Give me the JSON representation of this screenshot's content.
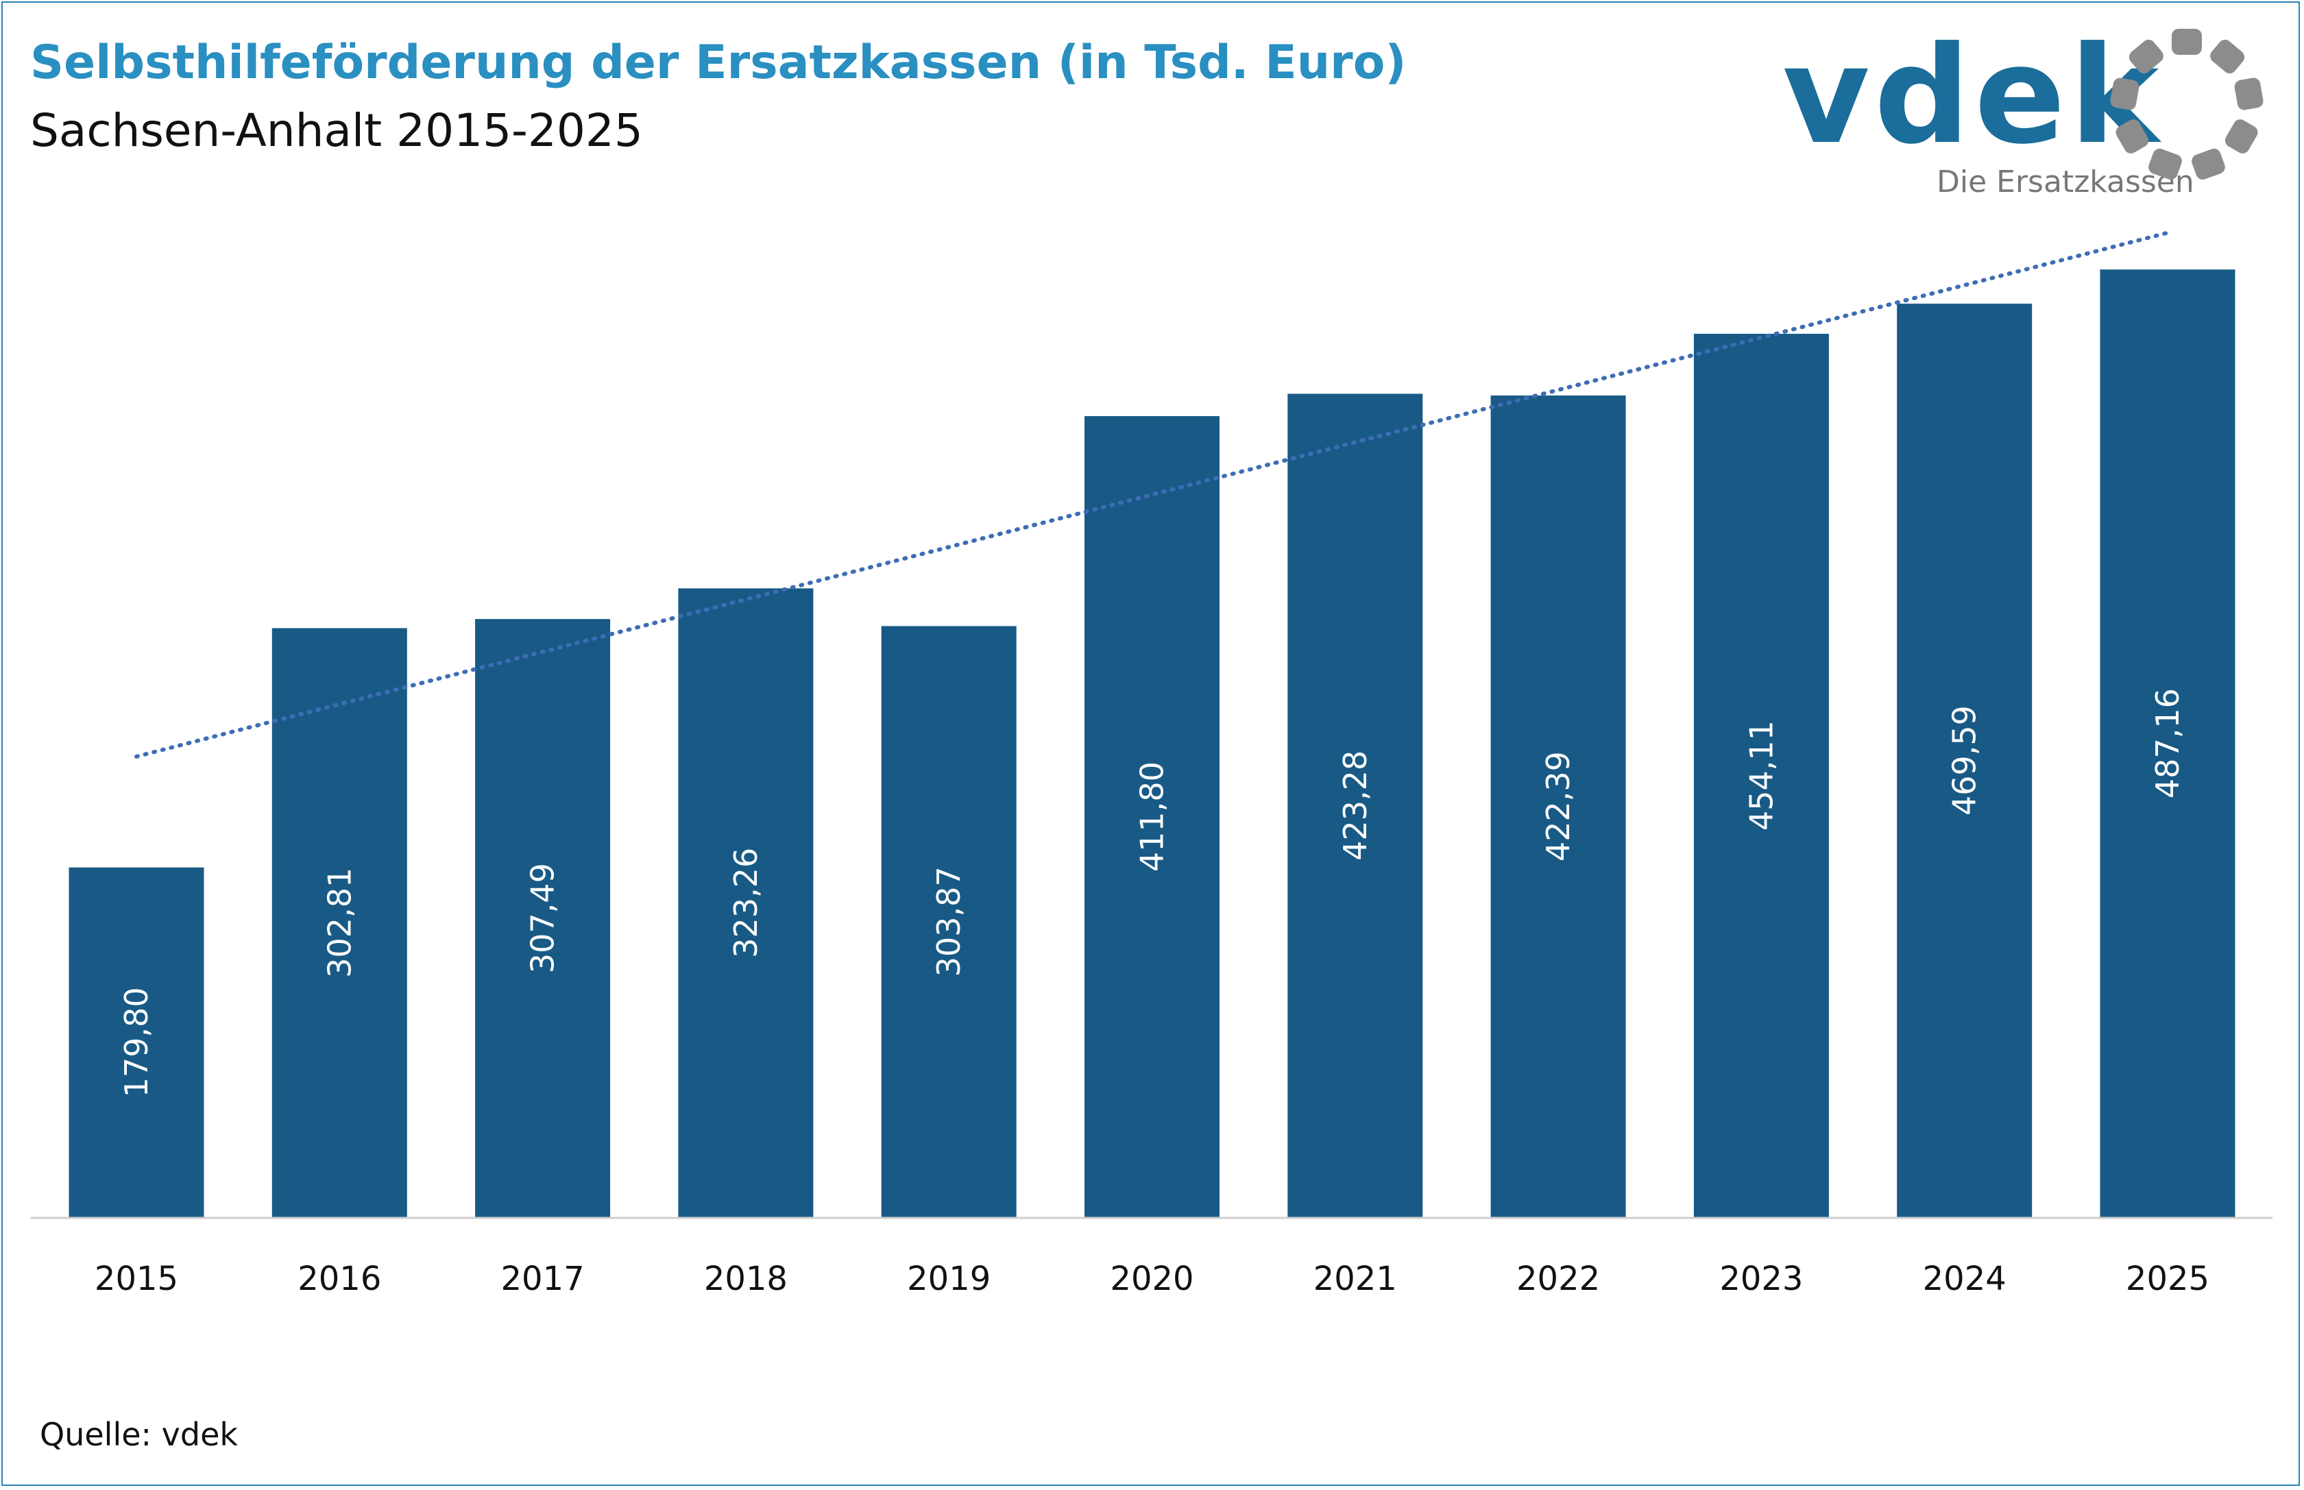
{
  "header": {
    "title": "Selbsthilfeförderung der Ersatzkassen (in Tsd. Euro)",
    "subtitle": "Sachsen-Anhalt 2015-2025"
  },
  "logo": {
    "wordmark": "vdek",
    "tagline": "Die Ersatzkassen",
    "icon": "vdek-ring-icon"
  },
  "footer": {
    "source": "Quelle: vdek"
  },
  "colors": {
    "bar": "#185a85",
    "trend": "#3d6db5",
    "title": "#2a8fc1",
    "logo": "#1b6d9b",
    "logo_ring": "#8c8c8c"
  },
  "chart_data": {
    "type": "bar",
    "title": "Selbsthilfeförderung der Ersatzkassen (in Tsd. Euro)",
    "subtitle": "Sachsen-Anhalt 2015-2025",
    "categories": [
      "2015",
      "2016",
      "2017",
      "2018",
      "2019",
      "2020",
      "2021",
      "2022",
      "2023",
      "2024",
      "2025"
    ],
    "values": [
      179.8,
      302.81,
      307.49,
      323.26,
      303.87,
      411.8,
      423.28,
      422.39,
      454.11,
      469.59,
      487.16
    ],
    "data_labels": [
      "179,80",
      "302,81",
      "307,49",
      "323,26",
      "303,87",
      "411,80",
      "423,28",
      "422,39",
      "454,11",
      "469,59",
      "487,16"
    ],
    "data_label_orientation": "vertical",
    "trendline": {
      "type": "linear",
      "style": "dotted"
    },
    "ylim": [
      0,
      520
    ],
    "y_axis_visible": false,
    "grid": false,
    "legend": "none"
  }
}
